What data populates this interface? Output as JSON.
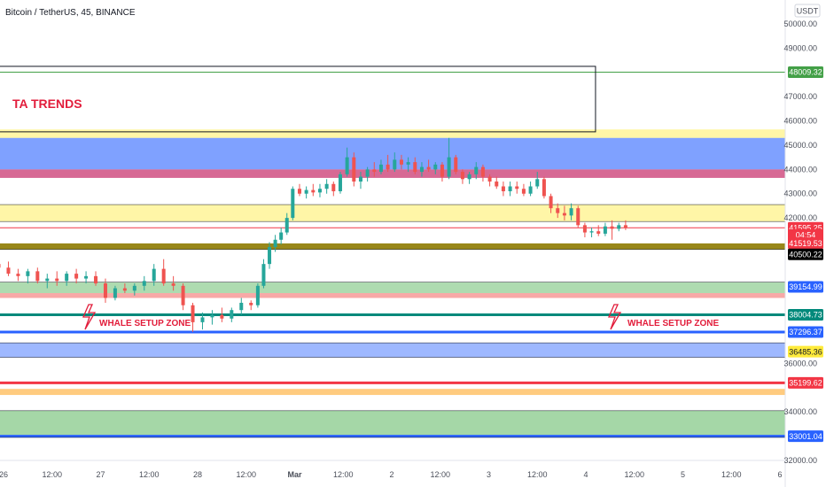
{
  "header": {
    "symbol_title": "Bitcoin / TetherUS, 45, BINANCE",
    "currency": "USDT"
  },
  "annotations": {
    "brand": "TA TRENDS",
    "zone_left": "WHALE SETUP ZONE",
    "zone_right": "WHALE SETUP ZONE"
  },
  "chart_data": {
    "type": "candlestick",
    "ylim": [
      31700,
      51000
    ],
    "y_ticks": [
      {
        "value": 50000,
        "label": "50000.00"
      },
      {
        "value": 49000,
        "label": "49000.00"
      },
      {
        "value": 47000,
        "label": "47000.00"
      },
      {
        "value": 46000,
        "label": "46000.00"
      },
      {
        "value": 45000,
        "label": "45000.00"
      },
      {
        "value": 44000,
        "label": "44000.00"
      },
      {
        "value": 43000,
        "label": "43000.00"
      },
      {
        "value": 42000,
        "label": "42000.00"
      },
      {
        "value": 36000,
        "label": "36000.00"
      },
      {
        "value": 34000,
        "label": "34000.00"
      },
      {
        "value": 32000,
        "label": "32000.00"
      }
    ],
    "x_ticks": [
      {
        "pos": 0.0,
        "label": "26"
      },
      {
        "pos": 0.5,
        "label": "12:00"
      },
      {
        "pos": 1.0,
        "label": "27"
      },
      {
        "pos": 1.5,
        "label": "12:00"
      },
      {
        "pos": 2.0,
        "label": "28"
      },
      {
        "pos": 2.5,
        "label": "12:00"
      },
      {
        "pos": 3.0,
        "label": "Mar"
      },
      {
        "pos": 3.5,
        "label": "12:00"
      },
      {
        "pos": 4.0,
        "label": "2"
      },
      {
        "pos": 4.5,
        "label": "12:00"
      },
      {
        "pos": 5.0,
        "label": "3"
      },
      {
        "pos": 5.5,
        "label": "12:00"
      },
      {
        "pos": 6.0,
        "label": "4"
      },
      {
        "pos": 6.5,
        "label": "12:00"
      },
      {
        "pos": 7.0,
        "label": "5"
      },
      {
        "pos": 7.5,
        "label": "12:00"
      },
      {
        "pos": 8.0,
        "label": "6"
      }
    ],
    "price_tags": [
      {
        "value": 48009.32,
        "label": "48009.32",
        "bg": "#43a047",
        "fg": "#ffffff"
      },
      {
        "value": 41595.25,
        "label": "41595.25",
        "bg": "#f23645",
        "fg": "#ffffff"
      },
      {
        "value": 41295,
        "label": "04:54",
        "bg": "#f23645",
        "fg": "#ffffff"
      },
      {
        "value": 40960,
        "label": "41519.53",
        "bg": "#f23645",
        "fg": "#ffffff"
      },
      {
        "value": 40500.22,
        "label": "40500.22",
        "bg": "#000000",
        "fg": "#ffffff"
      },
      {
        "value": 39154.99,
        "label": "39154.99",
        "bg": "#2962ff",
        "fg": "#ffffff"
      },
      {
        "value": 38004.73,
        "label": "38004.73",
        "bg": "#00897b",
        "fg": "#ffffff"
      },
      {
        "value": 37296.37,
        "label": "37296.37",
        "bg": "#2962ff",
        "fg": "#ffffff"
      },
      {
        "value": 36485.36,
        "label": "36485.36",
        "bg": "#ffeb3b",
        "fg": "#131722"
      },
      {
        "value": 35199.62,
        "label": "35199.62",
        "bg": "#f23645",
        "fg": "#ffffff"
      },
      {
        "value": 33001.04,
        "label": "33001.04",
        "bg": "#2962ff",
        "fg": "#ffffff"
      }
    ],
    "zones": [
      {
        "from": 45300,
        "to": 44000,
        "color": "#2962ff",
        "opacity": 0.6
      },
      {
        "from": 44000,
        "to": 43650,
        "color": "#c2185b",
        "opacity": 0.65
      },
      {
        "from": 45650,
        "to": 45300,
        "color": "#ffeb3b",
        "opacity": 0.45
      },
      {
        "from": 42550,
        "to": 41850,
        "color": "#ffeb3b",
        "opacity": 0.45
      },
      {
        "from": 40950,
        "to": 40700,
        "color": "#8d7a00",
        "opacity": 0.9
      },
      {
        "from": 39350,
        "to": 38900,
        "color": "#4caf50",
        "opacity": 0.45
      },
      {
        "from": 38900,
        "to": 38700,
        "color": "#ef5350",
        "opacity": 0.5
      },
      {
        "from": 36850,
        "to": 36250,
        "color": "#2962ff",
        "opacity": 0.45
      },
      {
        "from": 34950,
        "to": 34700,
        "color": "#ff9800",
        "opacity": 0.5
      },
      {
        "from": 34050,
        "to": 32950,
        "color": "#4caf50",
        "opacity": 0.5
      }
    ],
    "lines": [
      {
        "value": 48009.32,
        "color": "#43a047",
        "width": 1
      },
      {
        "value": 41595.25,
        "color": "#f23645",
        "width": 1
      },
      {
        "value": 38004.73,
        "color": "#00897b",
        "width": 3
      },
      {
        "value": 37296.37,
        "color": "#2962ff",
        "width": 3
      },
      {
        "value": 35199.62,
        "color": "#f23645",
        "width": 3
      },
      {
        "value": 33001.04,
        "color": "#2962ff",
        "width": 3
      }
    ],
    "box": {
      "x_from": -0.05,
      "x_to": 6.1,
      "y_from": 48250,
      "y_to": 45550
    },
    "candles": [
      {
        "t": -0.05,
        "o": 40100,
        "h": 40400,
        "l": 39700,
        "c": 39950
      },
      {
        "t": 0.05,
        "o": 39950,
        "h": 40200,
        "l": 39600,
        "c": 39700
      },
      {
        "t": 0.15,
        "o": 39700,
        "h": 39900,
        "l": 39400,
        "c": 39600
      },
      {
        "t": 0.25,
        "o": 39600,
        "h": 39900,
        "l": 39300,
        "c": 39800
      },
      {
        "t": 0.35,
        "o": 39800,
        "h": 39950,
        "l": 39300,
        "c": 39400
      },
      {
        "t": 0.45,
        "o": 39400,
        "h": 39700,
        "l": 39100,
        "c": 39500
      },
      {
        "t": 0.55,
        "o": 39500,
        "h": 39800,
        "l": 39200,
        "c": 39400
      },
      {
        "t": 0.65,
        "o": 39400,
        "h": 39800,
        "l": 39200,
        "c": 39700
      },
      {
        "t": 0.75,
        "o": 39700,
        "h": 39900,
        "l": 39300,
        "c": 39500
      },
      {
        "t": 0.85,
        "o": 39500,
        "h": 39800,
        "l": 39300,
        "c": 39600
      },
      {
        "t": 0.95,
        "o": 39600,
        "h": 39800,
        "l": 39200,
        "c": 39300
      },
      {
        "t": 1.05,
        "o": 39300,
        "h": 39500,
        "l": 38500,
        "c": 38700
      },
      {
        "t": 1.15,
        "o": 38700,
        "h": 39200,
        "l": 38600,
        "c": 39100
      },
      {
        "t": 1.25,
        "o": 39100,
        "h": 39300,
        "l": 38900,
        "c": 39000
      },
      {
        "t": 1.35,
        "o": 39000,
        "h": 39300,
        "l": 38800,
        "c": 39200
      },
      {
        "t": 1.45,
        "o": 39200,
        "h": 39600,
        "l": 39000,
        "c": 39400
      },
      {
        "t": 1.55,
        "o": 39400,
        "h": 40100,
        "l": 39200,
        "c": 39900
      },
      {
        "t": 1.65,
        "o": 39900,
        "h": 40300,
        "l": 39200,
        "c": 39300
      },
      {
        "t": 1.75,
        "o": 39300,
        "h": 39600,
        "l": 39000,
        "c": 39200
      },
      {
        "t": 1.85,
        "o": 39200,
        "h": 39300,
        "l": 38200,
        "c": 38400
      },
      {
        "t": 1.95,
        "o": 38400,
        "h": 38500,
        "l": 37300,
        "c": 37700
      },
      {
        "t": 2.05,
        "o": 37700,
        "h": 38100,
        "l": 37400,
        "c": 37900
      },
      {
        "t": 2.15,
        "o": 37900,
        "h": 38200,
        "l": 37600,
        "c": 38000
      },
      {
        "t": 2.25,
        "o": 38000,
        "h": 38300,
        "l": 37700,
        "c": 37850
      },
      {
        "t": 2.35,
        "o": 37850,
        "h": 38300,
        "l": 37700,
        "c": 38200
      },
      {
        "t": 2.45,
        "o": 38200,
        "h": 38700,
        "l": 38000,
        "c": 38500
      },
      {
        "t": 2.55,
        "o": 38500,
        "h": 38600,
        "l": 38200,
        "c": 38400
      },
      {
        "t": 2.62,
        "o": 38400,
        "h": 39300,
        "l": 38300,
        "c": 39200
      },
      {
        "t": 2.68,
        "o": 39200,
        "h": 40300,
        "l": 39100,
        "c": 40100
      },
      {
        "t": 2.74,
        "o": 40100,
        "h": 41000,
        "l": 39900,
        "c": 40800
      },
      {
        "t": 2.8,
        "o": 40800,
        "h": 41300,
        "l": 40600,
        "c": 41100
      },
      {
        "t": 2.86,
        "o": 41100,
        "h": 41600,
        "l": 40900,
        "c": 41400
      },
      {
        "t": 2.92,
        "o": 41400,
        "h": 42200,
        "l": 41300,
        "c": 42000
      },
      {
        "t": 2.98,
        "o": 42000,
        "h": 43300,
        "l": 41900,
        "c": 43200
      },
      {
        "t": 3.05,
        "o": 43200,
        "h": 43400,
        "l": 42900,
        "c": 43000
      },
      {
        "t": 3.12,
        "o": 43000,
        "h": 43300,
        "l": 42800,
        "c": 43150
      },
      {
        "t": 3.19,
        "o": 43150,
        "h": 43400,
        "l": 42900,
        "c": 43050
      },
      {
        "t": 3.26,
        "o": 43050,
        "h": 43400,
        "l": 42850,
        "c": 43200
      },
      {
        "t": 3.33,
        "o": 43200,
        "h": 43600,
        "l": 43000,
        "c": 43400
      },
      {
        "t": 3.4,
        "o": 43400,
        "h": 43500,
        "l": 42900,
        "c": 43100
      },
      {
        "t": 3.47,
        "o": 43100,
        "h": 43900,
        "l": 43000,
        "c": 43800
      },
      {
        "t": 3.54,
        "o": 43800,
        "h": 44900,
        "l": 43700,
        "c": 44500
      },
      {
        "t": 3.61,
        "o": 44500,
        "h": 44700,
        "l": 43300,
        "c": 43500
      },
      {
        "t": 3.68,
        "o": 43500,
        "h": 43900,
        "l": 43200,
        "c": 43700
      },
      {
        "t": 3.75,
        "o": 43700,
        "h": 44100,
        "l": 43500,
        "c": 44000
      },
      {
        "t": 3.82,
        "o": 44000,
        "h": 44300,
        "l": 43700,
        "c": 43900
      },
      {
        "t": 3.89,
        "o": 43900,
        "h": 44400,
        "l": 43800,
        "c": 44200
      },
      {
        "t": 3.96,
        "o": 44200,
        "h": 44600,
        "l": 43900,
        "c": 44000
      },
      {
        "t": 4.03,
        "o": 44000,
        "h": 44700,
        "l": 43900,
        "c": 44400
      },
      {
        "t": 4.1,
        "o": 44400,
        "h": 44600,
        "l": 44000,
        "c": 44200
      },
      {
        "t": 4.17,
        "o": 44200,
        "h": 44500,
        "l": 43900,
        "c": 44300
      },
      {
        "t": 4.24,
        "o": 44300,
        "h": 44500,
        "l": 43800,
        "c": 43900
      },
      {
        "t": 4.31,
        "o": 43900,
        "h": 44300,
        "l": 43700,
        "c": 44100
      },
      {
        "t": 4.38,
        "o": 44100,
        "h": 44400,
        "l": 43900,
        "c": 44000
      },
      {
        "t": 4.45,
        "o": 44000,
        "h": 44300,
        "l": 43800,
        "c": 44200
      },
      {
        "t": 4.52,
        "o": 44200,
        "h": 44300,
        "l": 43500,
        "c": 43700
      },
      {
        "t": 4.59,
        "o": 43700,
        "h": 45300,
        "l": 43600,
        "c": 44500
      },
      {
        "t": 4.66,
        "o": 44500,
        "h": 44600,
        "l": 43800,
        "c": 43900
      },
      {
        "t": 4.73,
        "o": 43900,
        "h": 44000,
        "l": 43400,
        "c": 43600
      },
      {
        "t": 4.8,
        "o": 43600,
        "h": 43900,
        "l": 43400,
        "c": 43800
      },
      {
        "t": 4.87,
        "o": 43800,
        "h": 44300,
        "l": 43600,
        "c": 44100
      },
      {
        "t": 4.94,
        "o": 44100,
        "h": 44200,
        "l": 43500,
        "c": 43700
      },
      {
        "t": 5.01,
        "o": 43700,
        "h": 43800,
        "l": 43300,
        "c": 43500
      },
      {
        "t": 5.08,
        "o": 43500,
        "h": 43700,
        "l": 43200,
        "c": 43300
      },
      {
        "t": 5.15,
        "o": 43300,
        "h": 43500,
        "l": 42900,
        "c": 43100
      },
      {
        "t": 5.22,
        "o": 43100,
        "h": 43500,
        "l": 42900,
        "c": 43300
      },
      {
        "t": 5.29,
        "o": 43300,
        "h": 43500,
        "l": 43000,
        "c": 43200
      },
      {
        "t": 5.36,
        "o": 43200,
        "h": 43400,
        "l": 42900,
        "c": 43000
      },
      {
        "t": 5.43,
        "o": 43000,
        "h": 43500,
        "l": 42900,
        "c": 43300
      },
      {
        "t": 5.5,
        "o": 43300,
        "h": 43900,
        "l": 43200,
        "c": 43600
      },
      {
        "t": 5.57,
        "o": 43600,
        "h": 43700,
        "l": 42800,
        "c": 42900
      },
      {
        "t": 5.64,
        "o": 42900,
        "h": 43000,
        "l": 42200,
        "c": 42400
      },
      {
        "t": 5.71,
        "o": 42400,
        "h": 42600,
        "l": 42000,
        "c": 42200
      },
      {
        "t": 5.78,
        "o": 42200,
        "h": 42500,
        "l": 41900,
        "c": 42100
      },
      {
        "t": 5.85,
        "o": 42100,
        "h": 42600,
        "l": 41900,
        "c": 42400
      },
      {
        "t": 5.92,
        "o": 42400,
        "h": 42500,
        "l": 41600,
        "c": 41700
      },
      {
        "t": 5.99,
        "o": 41700,
        "h": 41800,
        "l": 41200,
        "c": 41400
      },
      {
        "t": 6.06,
        "o": 41400,
        "h": 41600,
        "l": 41200,
        "c": 41450
      },
      {
        "t": 6.13,
        "o": 41450,
        "h": 41700,
        "l": 41250,
        "c": 41350
      },
      {
        "t": 6.2,
        "o": 41350,
        "h": 41800,
        "l": 41250,
        "c": 41650
      },
      {
        "t": 6.27,
        "o": 41650,
        "h": 41900,
        "l": 41100,
        "c": 41550
      },
      {
        "t": 6.34,
        "o": 41550,
        "h": 41800,
        "l": 41450,
        "c": 41700
      },
      {
        "t": 6.41,
        "o": 41700,
        "h": 41900,
        "l": 41500,
        "c": 41595
      }
    ]
  }
}
